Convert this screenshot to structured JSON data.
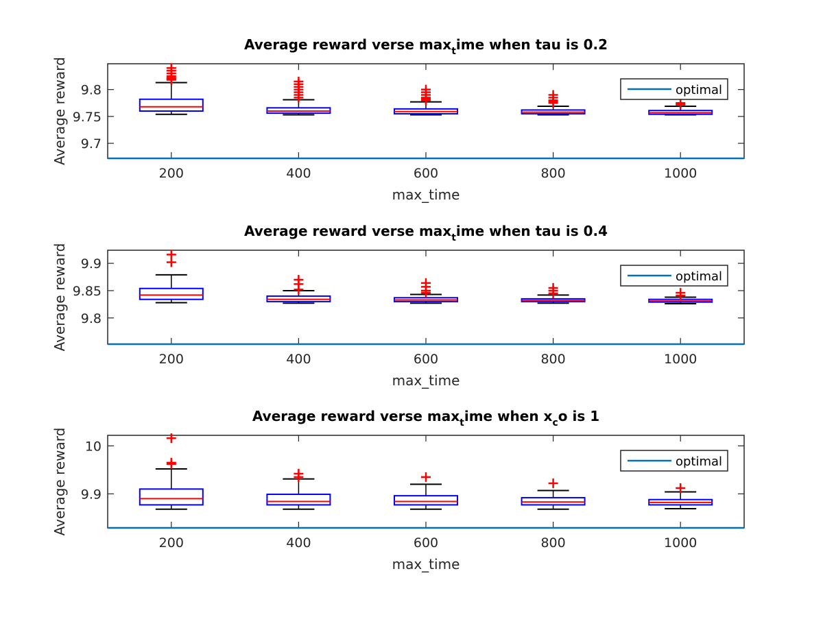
{
  "colors": {
    "axes": "#262626",
    "box": "#0000ff",
    "median": "#ff0000",
    "whisker": "#000000",
    "outlier": "#ff0000",
    "optimal_line": "#0072bd"
  },
  "chart_data": [
    {
      "type": "box",
      "title": {
        "main": "Average reward verse max",
        "sub": "t",
        "rest": "ime when tau is 0.2"
      },
      "xlabel": "max_time",
      "ylabel": "Average reward",
      "categories": [
        "200",
        "400",
        "600",
        "800",
        "1000"
      ],
      "ylim": [
        9.672,
        9.848
      ],
      "yticks": [
        9.7,
        9.75,
        9.8
      ],
      "ytick_labels": [
        "9.7",
        "9.75",
        "9.8"
      ],
      "legend": {
        "label": "optimal",
        "position": "top-right"
      },
      "optimal_value": 9.672,
      "boxes": [
        {
          "q1": 9.76,
          "median": 9.768,
          "q3": 9.782,
          "whisker_low": 9.754,
          "whisker_high": 9.813,
          "outliers": [
            9.818,
            9.82,
            9.822,
            9.825,
            9.83,
            9.835,
            9.84
          ]
        },
        {
          "q1": 9.756,
          "median": 9.76,
          "q3": 9.766,
          "whisker_low": 9.753,
          "whisker_high": 9.781,
          "outliers": [
            9.785,
            9.79,
            9.795,
            9.8,
            9.805,
            9.81,
            9.815
          ]
        },
        {
          "q1": 9.755,
          "median": 9.759,
          "q3": 9.764,
          "whisker_low": 9.753,
          "whisker_high": 9.777,
          "outliers": [
            9.78,
            9.782,
            9.785,
            9.79,
            9.795,
            9.8
          ]
        },
        {
          "q1": 9.755,
          "median": 9.758,
          "q3": 9.762,
          "whisker_low": 9.753,
          "whisker_high": 9.769,
          "outliers": [
            9.775,
            9.778,
            9.78,
            9.785,
            9.79
          ]
        },
        {
          "q1": 9.754,
          "median": 9.757,
          "q3": 9.761,
          "whisker_low": 9.753,
          "whisker_high": 9.769,
          "outliers": [
            9.772,
            9.775
          ]
        }
      ]
    },
    {
      "type": "box",
      "title": {
        "main": "Average reward verse max",
        "sub": "t",
        "rest": "ime when tau is 0.4"
      },
      "xlabel": "max_time",
      "ylabel": "Average reward",
      "categories": [
        "200",
        "400",
        "600",
        "800",
        "1000"
      ],
      "ylim": [
        9.752,
        9.924
      ],
      "yticks": [
        9.8,
        9.85,
        9.9
      ],
      "ytick_labels": [
        "9.8",
        "9.85",
        "9.9"
      ],
      "legend": {
        "label": "optimal",
        "position": "top-right"
      },
      "optimal_value": 9.752,
      "boxes": [
        {
          "q1": 9.834,
          "median": 9.842,
          "q3": 9.854,
          "whisker_low": 9.828,
          "whisker_high": 9.879,
          "outliers": [
            9.902,
            9.916
          ]
        },
        {
          "q1": 9.83,
          "median": 9.834,
          "q3": 9.84,
          "whisker_low": 9.827,
          "whisker_high": 9.85,
          "outliers": [
            9.852,
            9.862,
            9.87
          ]
        },
        {
          "q1": 9.83,
          "median": 9.833,
          "q3": 9.837,
          "whisker_low": 9.827,
          "whisker_high": 9.843,
          "outliers": [
            9.846,
            9.85,
            9.857,
            9.864
          ]
        },
        {
          "q1": 9.83,
          "median": 9.832,
          "q3": 9.835,
          "whisker_low": 9.827,
          "whisker_high": 9.842,
          "outliers": [
            9.845,
            9.85,
            9.855
          ]
        },
        {
          "q1": 9.829,
          "median": 9.831,
          "q3": 9.834,
          "whisker_low": 9.826,
          "whisker_high": 9.838,
          "outliers": [
            9.841,
            9.846
          ]
        }
      ]
    },
    {
      "type": "box",
      "title": {
        "main": "Average reward verse max",
        "sub": "t",
        "rest": "ime when x",
        "sub2": "c",
        "rest2": "o is 1"
      },
      "xlabel": "max_time",
      "ylabel": "Average reward",
      "categories": [
        "200",
        "400",
        "600",
        "800",
        "1000"
      ],
      "ylim": [
        9.829,
        10.022
      ],
      "yticks": [
        9.9,
        10
      ],
      "ytick_labels": [
        "9.9",
        "10"
      ],
      "legend": {
        "label": "optimal",
        "position": "top-right"
      },
      "optimal_value": 9.829,
      "boxes": [
        {
          "q1": 9.877,
          "median": 9.89,
          "q3": 9.91,
          "whisker_low": 9.868,
          "whisker_high": 9.952,
          "outliers": [
            9.962,
            9.965,
            10.016
          ]
        },
        {
          "q1": 9.877,
          "median": 9.884,
          "q3": 9.899,
          "whisker_low": 9.868,
          "whisker_high": 9.931,
          "outliers": [
            9.935,
            9.942
          ]
        },
        {
          "q1": 9.877,
          "median": 9.884,
          "q3": 9.896,
          "whisker_low": 9.868,
          "whisker_high": 9.92,
          "outliers": [
            9.935
          ]
        },
        {
          "q1": 9.877,
          "median": 9.883,
          "q3": 9.892,
          "whisker_low": 9.868,
          "whisker_high": 9.907,
          "outliers": [
            9.922
          ]
        },
        {
          "q1": 9.877,
          "median": 9.882,
          "q3": 9.888,
          "whisker_low": 9.869,
          "whisker_high": 9.904,
          "outliers": [
            9.912
          ]
        }
      ]
    }
  ]
}
